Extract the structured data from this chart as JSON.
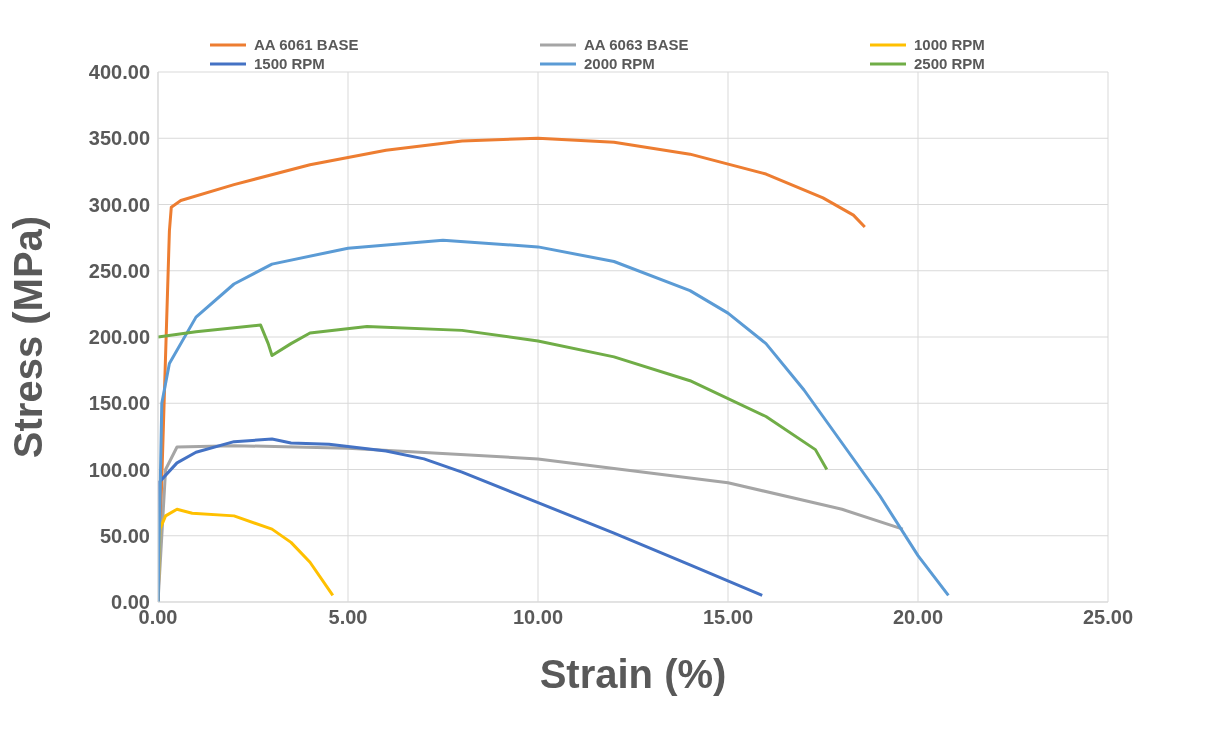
{
  "chart_data": {
    "type": "line",
    "xlabel": "Strain (%)",
    "ylabel": "Stress (MPa)",
    "xlim": [
      0,
      25
    ],
    "xticks": [
      {
        "value": 0,
        "label": "0.00"
      },
      {
        "value": 5,
        "label": "5.00"
      },
      {
        "value": 10,
        "label": "10.00"
      },
      {
        "value": 15,
        "label": "15.00"
      },
      {
        "value": 20,
        "label": "20.00"
      },
      {
        "value": 25,
        "label": "25.00"
      }
    ],
    "ylim": [
      0,
      400
    ],
    "yticks": [
      {
        "value": 0,
        "label": "0.00"
      },
      {
        "value": 50,
        "label": "50.00"
      },
      {
        "value": 100,
        "label": "100.00"
      },
      {
        "value": 150,
        "label": "150.00"
      },
      {
        "value": 200,
        "label": "200.00"
      },
      {
        "value": 250,
        "label": "250.00"
      },
      {
        "value": 300,
        "label": "300.00"
      },
      {
        "value": 350,
        "label": "350.00"
      },
      {
        "value": 400,
        "label": "400.00"
      }
    ],
    "grid": true,
    "legend": "top",
    "marker": "none",
    "line_style": "solid",
    "series": [
      {
        "name": "AA 6061 BASE",
        "color": "#ed7d31",
        "x": [
          0,
          0.3,
          0.35,
          0.6,
          2,
          4,
          6,
          8,
          10,
          12,
          14,
          16,
          17.5,
          18.3,
          18.6
        ],
        "values": [
          0,
          280,
          298,
          303,
          315,
          330,
          341,
          348,
          350,
          347,
          338,
          323,
          305,
          292,
          283
        ]
      },
      {
        "name": "AA 6063 BASE",
        "color": "#a5a5a5",
        "x": [
          0,
          0.2,
          0.5,
          2,
          5,
          10,
          15,
          18,
          19.6
        ],
        "values": [
          0,
          100,
          117,
          118,
          116,
          108,
          90,
          70,
          55
        ]
      },
      {
        "name": "1000 RPM",
        "color": "#ffc000",
        "x": [
          0,
          0.05,
          0.2,
          0.5,
          0.9,
          2,
          3,
          3.5,
          4,
          4.6
        ],
        "values": [
          0,
          55,
          65,
          70,
          67,
          65,
          55,
          45,
          30,
          5
        ]
      },
      {
        "name": "1500 RPM",
        "color": "#4472c4",
        "x": [
          0,
          0.02,
          0.5,
          1,
          2,
          3,
          3.5,
          4.5,
          6,
          7,
          8,
          10,
          12,
          14,
          15.9
        ],
        "values": [
          0,
          90,
          105,
          113,
          121,
          123,
          120,
          119,
          114,
          108,
          98,
          75,
          52,
          28,
          5
        ]
      },
      {
        "name": "2000 RPM",
        "color": "#5b9bd5",
        "x": [
          0,
          0.1,
          0.3,
          1,
          2,
          3,
          5,
          7.5,
          10,
          12,
          14,
          15,
          16,
          17,
          18,
          19,
          20,
          20.8
        ],
        "values": [
          0,
          150,
          180,
          215,
          240,
          255,
          267,
          273,
          268,
          257,
          235,
          218,
          195,
          160,
          120,
          80,
          35,
          5
        ]
      },
      {
        "name": "2500 RPM",
        "color": "#70ad47",
        "x": [
          0,
          1,
          2.7,
          2.9,
          3,
          3.5,
          4,
          5.5,
          8,
          10,
          12,
          14,
          16,
          17.3,
          17.6
        ],
        "values": [
          200,
          204,
          209,
          195,
          186,
          195,
          203,
          208,
          205,
          197,
          185,
          167,
          140,
          115,
          100
        ]
      }
    ]
  }
}
